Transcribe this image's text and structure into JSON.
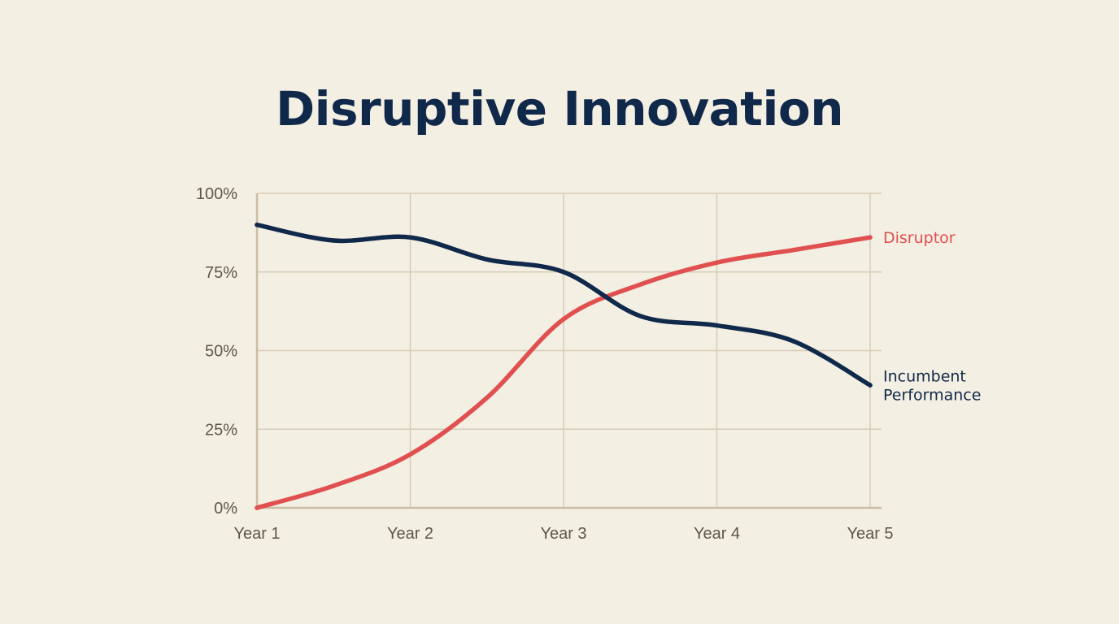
{
  "chart_data": {
    "type": "line",
    "title": "Disruptive Innovation",
    "xlabel": "",
    "ylabel": "",
    "categories": [
      "Year 1",
      "Year 2",
      "Year 3",
      "Year 4",
      "Year 5"
    ],
    "x": [
      1,
      1.5,
      2,
      2.5,
      3,
      3.5,
      4,
      4.5,
      5
    ],
    "ylim": [
      0,
      100
    ],
    "yticks": [
      0,
      25,
      50,
      75,
      100
    ],
    "ytick_labels": [
      "0%",
      "25%",
      "50%",
      "75%",
      "100%"
    ],
    "grid": true,
    "legend": "inline-right",
    "series": [
      {
        "name": "Disruptor",
        "label_lines": [
          "Disruptor"
        ],
        "color": "#e05050",
        "values": [
          0,
          7,
          17,
          35,
          60,
          71,
          78,
          82,
          86
        ]
      },
      {
        "name": "Incumbent Performance",
        "label_lines": [
          "Incumbent",
          "Performance"
        ],
        "color": "#10294a",
        "values": [
          90,
          85,
          86,
          79,
          75,
          61,
          58,
          53,
          39
        ]
      }
    ]
  },
  "colors": {
    "background": "#f4efe3",
    "grid": "#d6ccb6",
    "axis": "#c9bda4",
    "tick_text": "#5e5648",
    "title": "#10294a"
  }
}
